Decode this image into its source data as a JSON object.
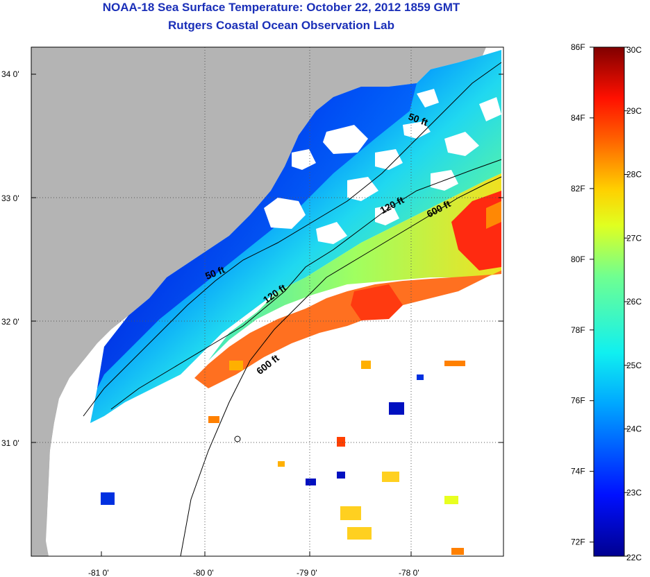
{
  "header": {
    "title": "NOAA-18 Sea Surface Temperature:  October 22, 2012 1859 GMT",
    "subtitle": "Rutgers Coastal Ocean Observation Lab"
  },
  "axes": {
    "lon_ticks": [
      "-81 0'",
      "-80 0'",
      "-79 0'",
      "-78 0'"
    ],
    "lat_ticks": [
      "34 0'",
      "33 0'",
      "32 0'",
      "31 0'"
    ]
  },
  "contours": [
    {
      "label": "50 ft",
      "depth_ft": 50
    },
    {
      "label": "120 ft",
      "depth_ft": 120
    },
    {
      "label": "600 ft",
      "depth_ft": 600
    }
  ],
  "colorbar": {
    "celsius": [
      "30C",
      "29C",
      "28C",
      "27C",
      "26C",
      "25C",
      "24C",
      "23C",
      "22C"
    ],
    "fahrenheit": [
      "86F",
      "84F",
      "82F",
      "80F",
      "78F",
      "76F",
      "74F",
      "72F"
    ],
    "min_c": 22,
    "max_c": 30
  },
  "colors": {
    "title": "#1a2fb8",
    "land": "#b4b4b4",
    "no_data": "#ffffff",
    "cold": "#000090",
    "warm": "#800000"
  }
}
